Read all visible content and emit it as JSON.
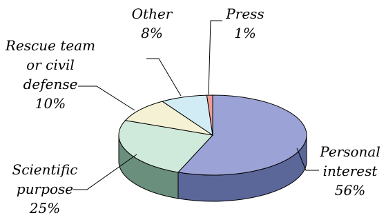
{
  "chart_data": {
    "type": "pie",
    "style": "3d",
    "slices": [
      {
        "key": "personal",
        "label_lines": [
          "Personal",
          "interest"
        ],
        "pct_text": "56%",
        "value": 56,
        "top_color": "#9ba3d6",
        "side_color": "#5b6699"
      },
      {
        "key": "scientific",
        "label_lines": [
          "Scientific",
          "purpose"
        ],
        "pct_text": "25%",
        "value": 25,
        "top_color": "#cfe9db",
        "side_color": "#6a8f7c"
      },
      {
        "key": "rescue",
        "label_lines": [
          "Rescue team",
          "or civil",
          "defense"
        ],
        "pct_text": "10%",
        "value": 10,
        "top_color": "#f4f1d4",
        "side_color": "#aaa78e"
      },
      {
        "key": "other",
        "label_lines": [
          "Other"
        ],
        "pct_text": "8%",
        "value": 8,
        "top_color": "#d1ecf5",
        "side_color": "#8aa9b3"
      },
      {
        "key": "press",
        "label_lines": [
          "Press"
        ],
        "pct_text": "1%",
        "value": 1,
        "top_color": "#ef9a94",
        "side_color": "#b56a64"
      }
    ]
  }
}
